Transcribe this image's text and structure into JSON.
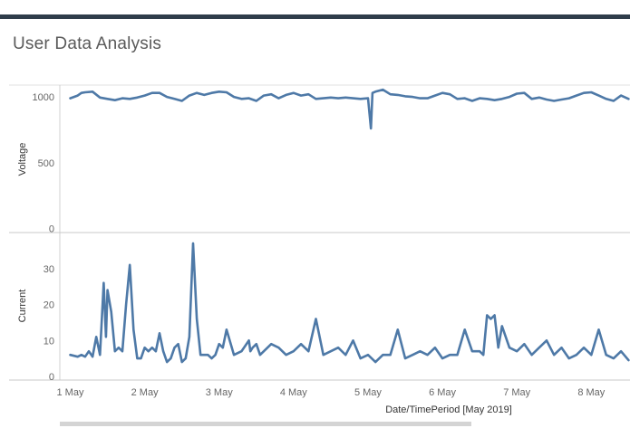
{
  "dashboard": {
    "title": "User Data Analysis"
  },
  "chart_data": {
    "type": "line",
    "xlabel": "Date/TimePeriod [May 2019]",
    "x_tick_labels": [
      "1 May",
      "2 May",
      "3 May",
      "4 May",
      "5 May",
      "6 May",
      "7 May",
      "8 May"
    ],
    "x_tick_days": [
      1,
      2,
      3,
      4,
      5,
      6,
      7,
      8
    ],
    "xlim": [
      0.86,
      8.52
    ],
    "grid": false,
    "legend": "none",
    "line_color": "#4e79a7",
    "panels": [
      {
        "ylabel": "Voltage",
        "ylim": [
          -30,
          1090
        ],
        "y_ticks": [
          0,
          500,
          1000
        ],
        "series": [
          {
            "x": [
              1.0,
              1.1,
              1.15,
              1.2,
              1.3,
              1.4,
              1.5,
              1.6,
              1.7,
              1.8,
              1.9,
              2.0,
              2.1,
              2.2,
              2.3,
              2.4,
              2.5,
              2.6,
              2.7,
              2.8,
              2.9,
              3.0,
              3.1,
              3.2,
              3.3,
              3.4,
              3.5,
              3.6,
              3.7,
              3.8,
              3.9,
              4.0,
              4.1,
              4.2,
              4.3,
              4.4,
              4.5,
              4.6,
              4.7,
              4.8,
              4.9,
              5.0,
              5.04,
              5.06,
              5.1,
              5.2,
              5.3,
              5.4,
              5.5,
              5.6,
              5.7,
              5.8,
              5.9,
              6.0,
              6.1,
              6.2,
              6.3,
              6.4,
              6.5,
              6.6,
              6.7,
              6.8,
              6.9,
              7.0,
              7.1,
              7.2,
              7.3,
              7.4,
              7.5,
              7.6,
              7.7,
              7.8,
              7.9,
              8.0,
              8.1,
              8.2,
              8.3,
              8.4,
              8.5
            ],
            "y": [
              990,
              1010,
              1030,
              1035,
              1040,
              995,
              985,
              975,
              990,
              985,
              995,
              1010,
              1030,
              1030,
              1000,
              985,
              970,
              1010,
              1030,
              1015,
              1030,
              1040,
              1035,
              1000,
              985,
              990,
              970,
              1010,
              1020,
              990,
              1015,
              1030,
              1010,
              1020,
              985,
              990,
              995,
              990,
              995,
              990,
              985,
              990,
              760,
              1030,
              1040,
              1055,
              1020,
              1015,
              1005,
              1000,
              990,
              990,
              1010,
              1030,
              1020,
              985,
              990,
              970,
              990,
              985,
              975,
              985,
              1000,
              1025,
              1030,
              985,
              995,
              980,
              970,
              980,
              990,
              1010,
              1030,
              1035,
              1010,
              985,
              970,
              1010,
              985
            ]
          }
        ]
      },
      {
        "ylabel": "Current",
        "ylim": [
          -1,
          40
        ],
        "y_ticks": [
          0,
          10,
          20,
          30
        ],
        "series": [
          {
            "x": [
              1.0,
              1.1,
              1.15,
              1.2,
              1.25,
              1.3,
              1.35,
              1.4,
              1.45,
              1.48,
              1.5,
              1.55,
              1.6,
              1.65,
              1.7,
              1.75,
              1.8,
              1.85,
              1.9,
              1.95,
              2.0,
              2.05,
              2.1,
              2.15,
              2.2,
              2.25,
              2.3,
              2.35,
              2.4,
              2.45,
              2.5,
              2.55,
              2.6,
              2.65,
              2.7,
              2.75,
              2.8,
              2.85,
              2.9,
              2.95,
              3.0,
              3.05,
              3.1,
              3.2,
              3.3,
              3.4,
              3.42,
              3.45,
              3.5,
              3.55,
              3.6,
              3.7,
              3.8,
              3.9,
              4.0,
              4.1,
              4.2,
              4.3,
              4.4,
              4.5,
              4.6,
              4.7,
              4.8,
              4.9,
              5.0,
              5.1,
              5.2,
              5.3,
              5.4,
              5.5,
              5.6,
              5.7,
              5.8,
              5.9,
              6.0,
              6.1,
              6.2,
              6.3,
              6.4,
              6.5,
              6.55,
              6.6,
              6.65,
              6.7,
              6.75,
              6.8,
              6.9,
              7.0,
              7.1,
              7.2,
              7.3,
              7.4,
              7.5,
              7.6,
              7.7,
              7.8,
              7.9,
              8.0,
              8.1,
              8.2,
              8.3,
              8.4,
              8.5
            ],
            "y": [
              6,
              5.5,
              6,
              5.5,
              7,
              5.5,
              11,
              6,
              26,
              11,
              24,
              18,
              7,
              8,
              7,
              20,
              31,
              13,
              5,
              5,
              8,
              7,
              8,
              7,
              12,
              7,
              4,
              5,
              8,
              9,
              4,
              5,
              11,
              37,
              16,
              6,
              6,
              6,
              5,
              6,
              9,
              8,
              13,
              6,
              7,
              10,
              7,
              8,
              9,
              6,
              7,
              9,
              8,
              6,
              7,
              9,
              7,
              16,
              6,
              7,
              8,
              6,
              10,
              5,
              6,
              4,
              6,
              6,
              13,
              5,
              6,
              7,
              6,
              8,
              5,
              6,
              6,
              13,
              7,
              7,
              6,
              17,
              16,
              17,
              8,
              14,
              8,
              7,
              9,
              6,
              8,
              10,
              6,
              8,
              5,
              6,
              8,
              6,
              13,
              6,
              5,
              7,
              4.5
            ]
          }
        ]
      }
    ]
  }
}
